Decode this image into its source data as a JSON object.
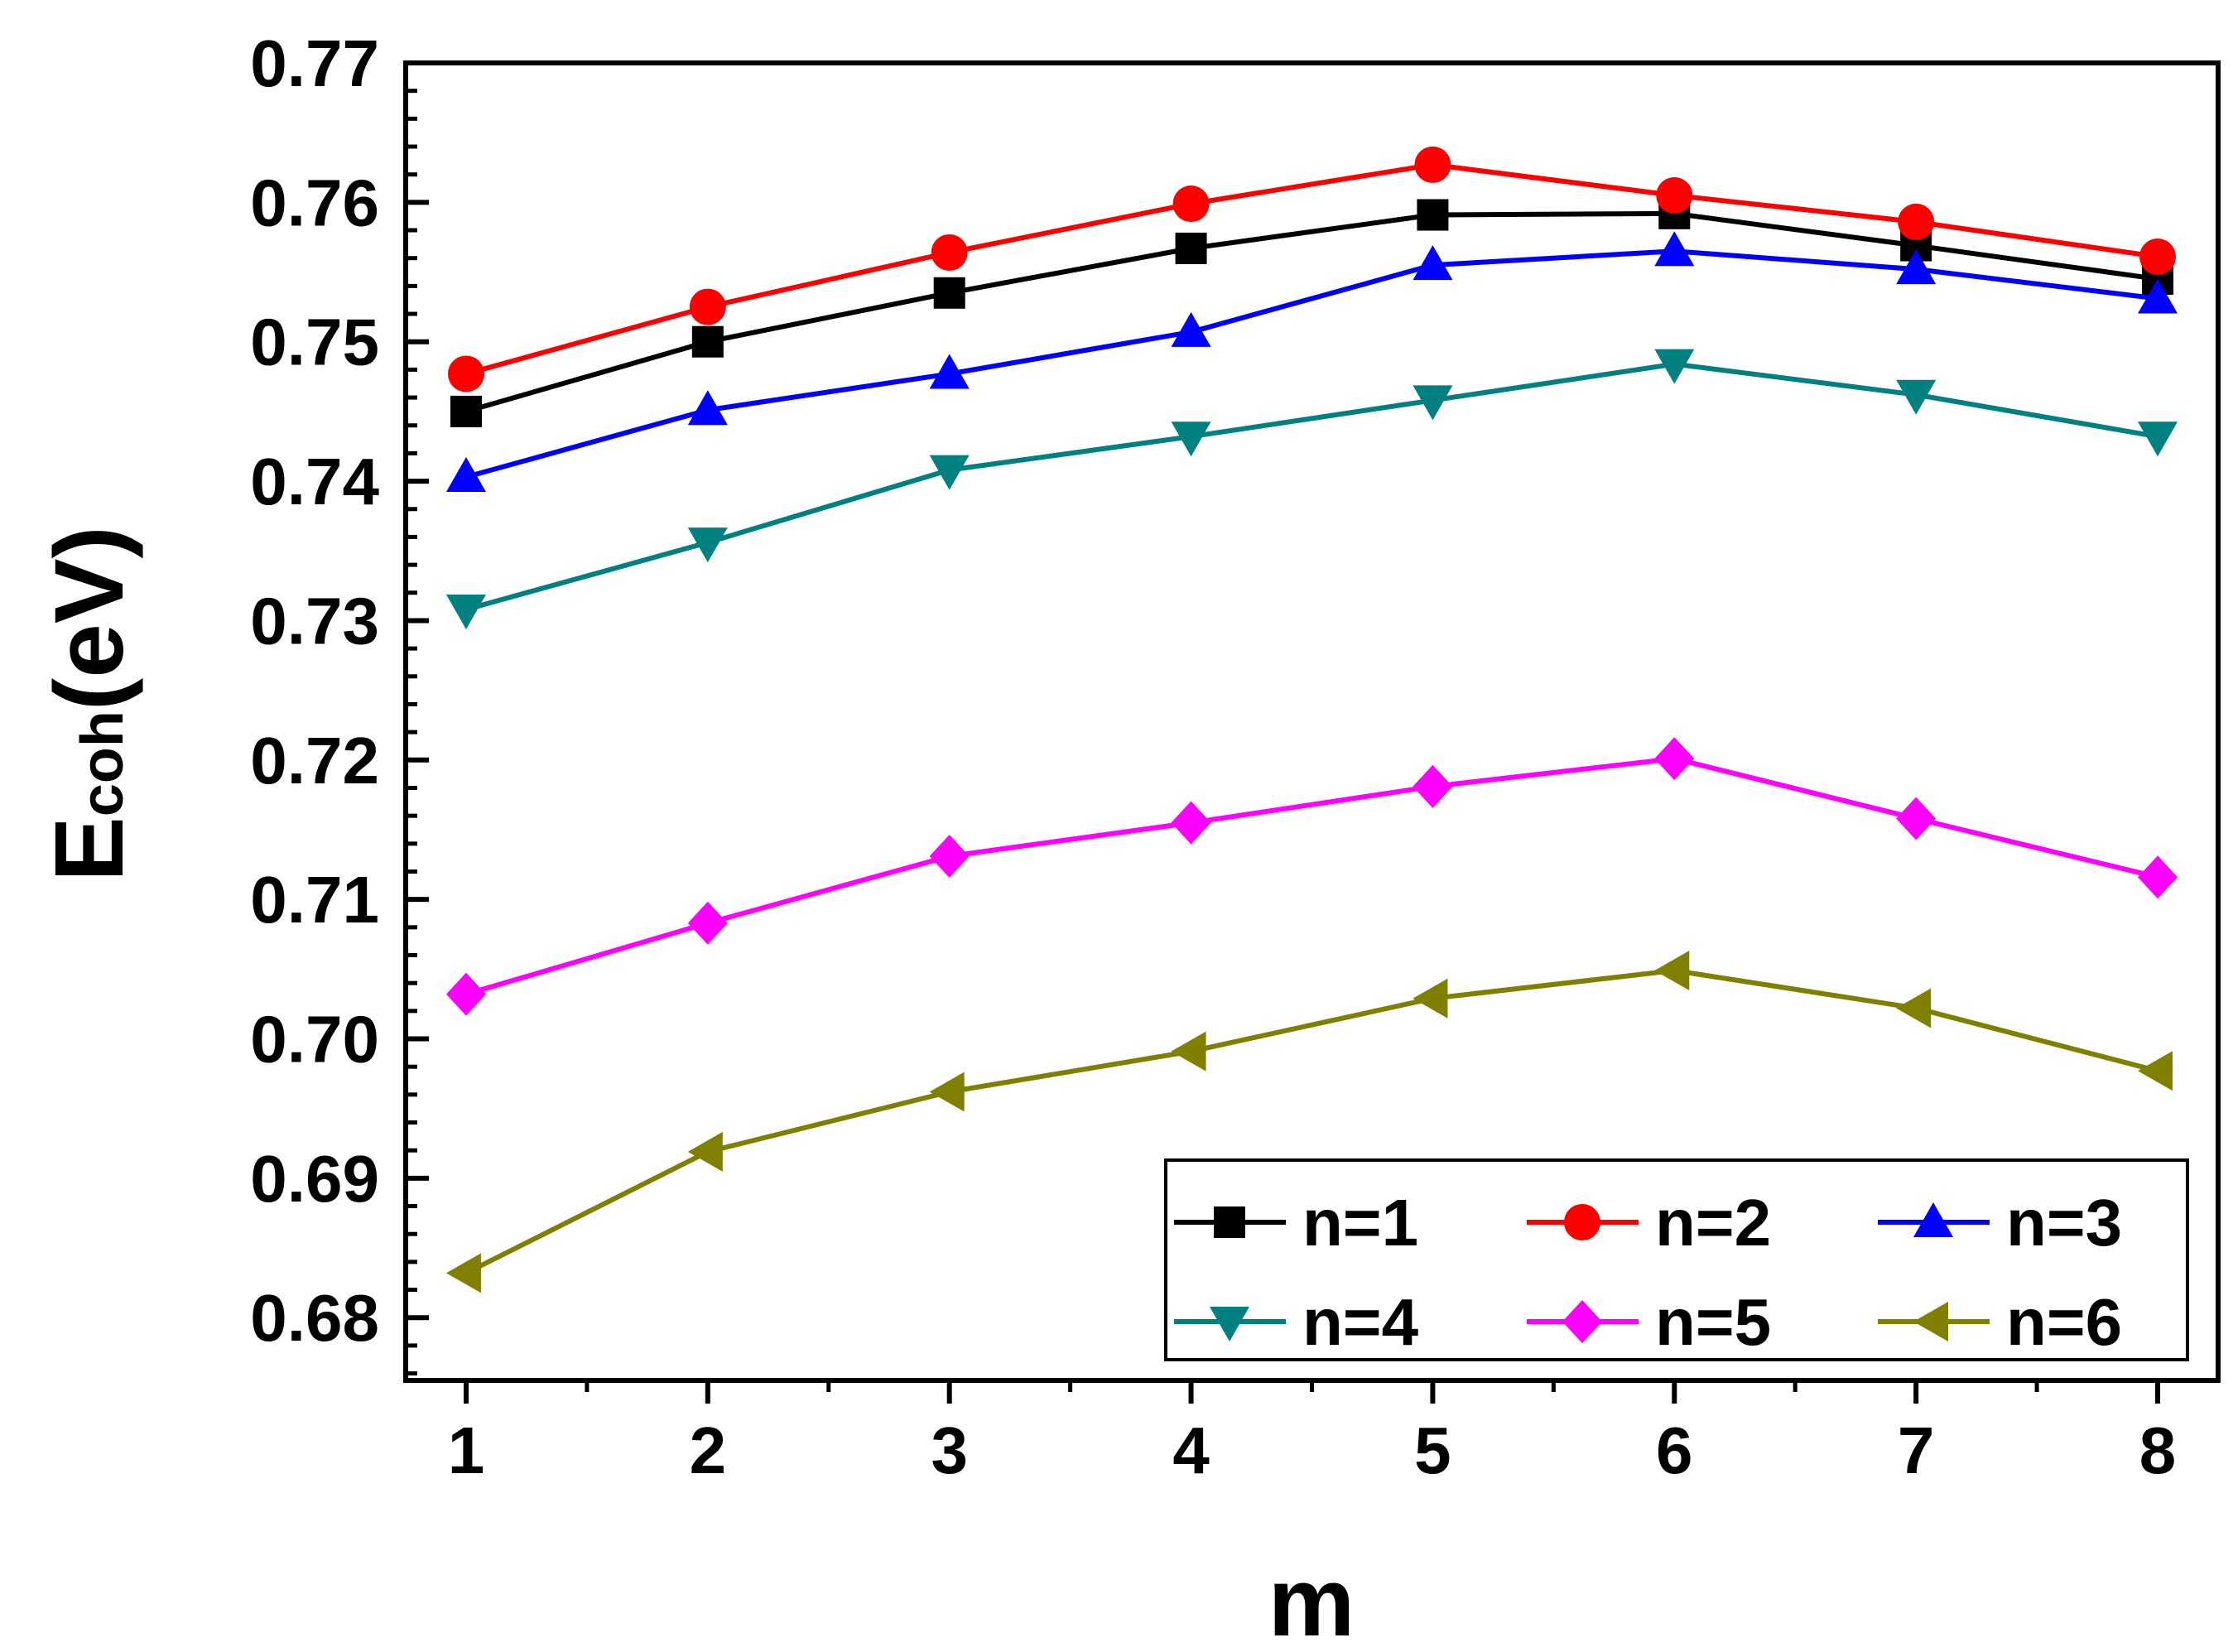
{
  "chart_data": {
    "type": "line",
    "xlabel": "m",
    "ylabel_main": "E",
    "ylabel_sub": "coh",
    "ylabel_unit": "(eV)",
    "x": [
      1,
      2,
      3,
      4,
      5,
      6,
      7,
      8
    ],
    "x_ticks": [
      "1",
      "2",
      "3",
      "4",
      "5",
      "6",
      "7",
      "8"
    ],
    "xlim": [
      0.75,
      8.25
    ],
    "ylim": [
      0.6755,
      0.77
    ],
    "y_ticks": [
      "0.68",
      "0.69",
      "0.70",
      "0.71",
      "0.72",
      "0.73",
      "0.74",
      "0.75",
      "0.76",
      "0.77"
    ],
    "y_tick_values": [
      0.68,
      0.69,
      0.7,
      0.71,
      0.72,
      0.73,
      0.74,
      0.75,
      0.76,
      0.77
    ],
    "grid": false,
    "legend_position": "bottom-right",
    "series": [
      {
        "name": "n=1",
        "color": "#000000",
        "marker": "square",
        "values": [
          0.745,
          0.75,
          0.7535,
          0.7567,
          0.7591,
          0.7592,
          0.7569,
          0.7545
        ]
      },
      {
        "name": "n=2",
        "color": "#ff0000",
        "marker": "circle",
        "values": [
          0.7477,
          0.7525,
          0.7564,
          0.7599,
          0.7627,
          0.7605,
          0.7586,
          0.7561
        ]
      },
      {
        "name": "n=3",
        "color": "#0000ff",
        "marker": "triangle-up",
        "values": [
          0.7403,
          0.7451,
          0.7477,
          0.7507,
          0.7555,
          0.7565,
          0.7552,
          0.7531
        ]
      },
      {
        "name": "n=4",
        "color": "#008080",
        "marker": "triangle-down",
        "values": [
          0.7308,
          0.7356,
          0.7408,
          0.7432,
          0.7458,
          0.7484,
          0.7462,
          0.7432
        ]
      },
      {
        "name": "n=5",
        "color": "#ff00ff",
        "marker": "diamond",
        "values": [
          0.7032,
          0.7083,
          0.7131,
          0.7155,
          0.7181,
          0.7201,
          0.7158,
          0.7116
        ]
      },
      {
        "name": "n=6",
        "color": "#808000",
        "marker": "triangle-left",
        "values": [
          0.6832,
          0.6919,
          0.6962,
          0.6991,
          0.7029,
          0.7049,
          0.7022,
          0.6977
        ]
      }
    ]
  }
}
